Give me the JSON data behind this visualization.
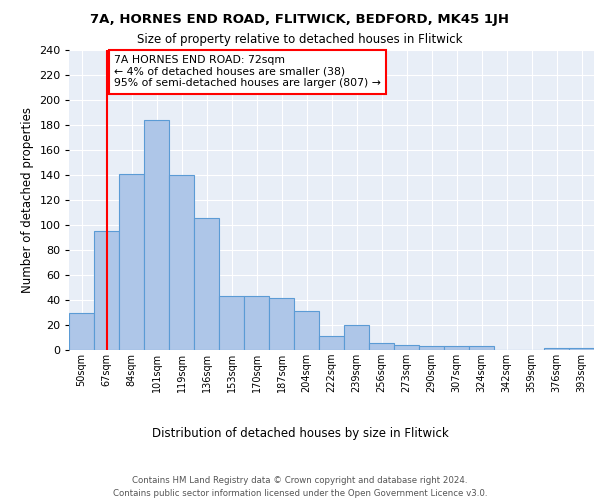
{
  "title1": "7A, HORNES END ROAD, FLITWICK, BEDFORD, MK45 1JH",
  "title2": "Size of property relative to detached houses in Flitwick",
  "xlabel": "Distribution of detached houses by size in Flitwick",
  "ylabel": "Number of detached properties",
  "bar_labels": [
    "50sqm",
    "67sqm",
    "84sqm",
    "101sqm",
    "119sqm",
    "136sqm",
    "153sqm",
    "170sqm",
    "187sqm",
    "204sqm",
    "222sqm",
    "239sqm",
    "256sqm",
    "273sqm",
    "290sqm",
    "307sqm",
    "324sqm",
    "342sqm",
    "359sqm",
    "376sqm",
    "393sqm"
  ],
  "bar_values": [
    30,
    95,
    141,
    184,
    140,
    106,
    43,
    43,
    42,
    31,
    11,
    20,
    6,
    4,
    3,
    3,
    3,
    0,
    0,
    2,
    2
  ],
  "bar_color": "#aec6e8",
  "bar_edge_color": "#5b9bd5",
  "background_color": "#e8eef7",
  "annotation_text": "7A HORNES END ROAD: 72sqm\n← 4% of detached houses are smaller (38)\n95% of semi-detached houses are larger (807) →",
  "annotation_box_color": "white",
  "annotation_box_edge": "red",
  "red_line_x": 1.0,
  "ylim": [
    0,
    240
  ],
  "yticks": [
    0,
    20,
    40,
    60,
    80,
    100,
    120,
    140,
    160,
    180,
    200,
    220,
    240
  ],
  "footer_line1": "Contains HM Land Registry data © Crown copyright and database right 2024.",
  "footer_line2": "Contains public sector information licensed under the Open Government Licence v3.0."
}
